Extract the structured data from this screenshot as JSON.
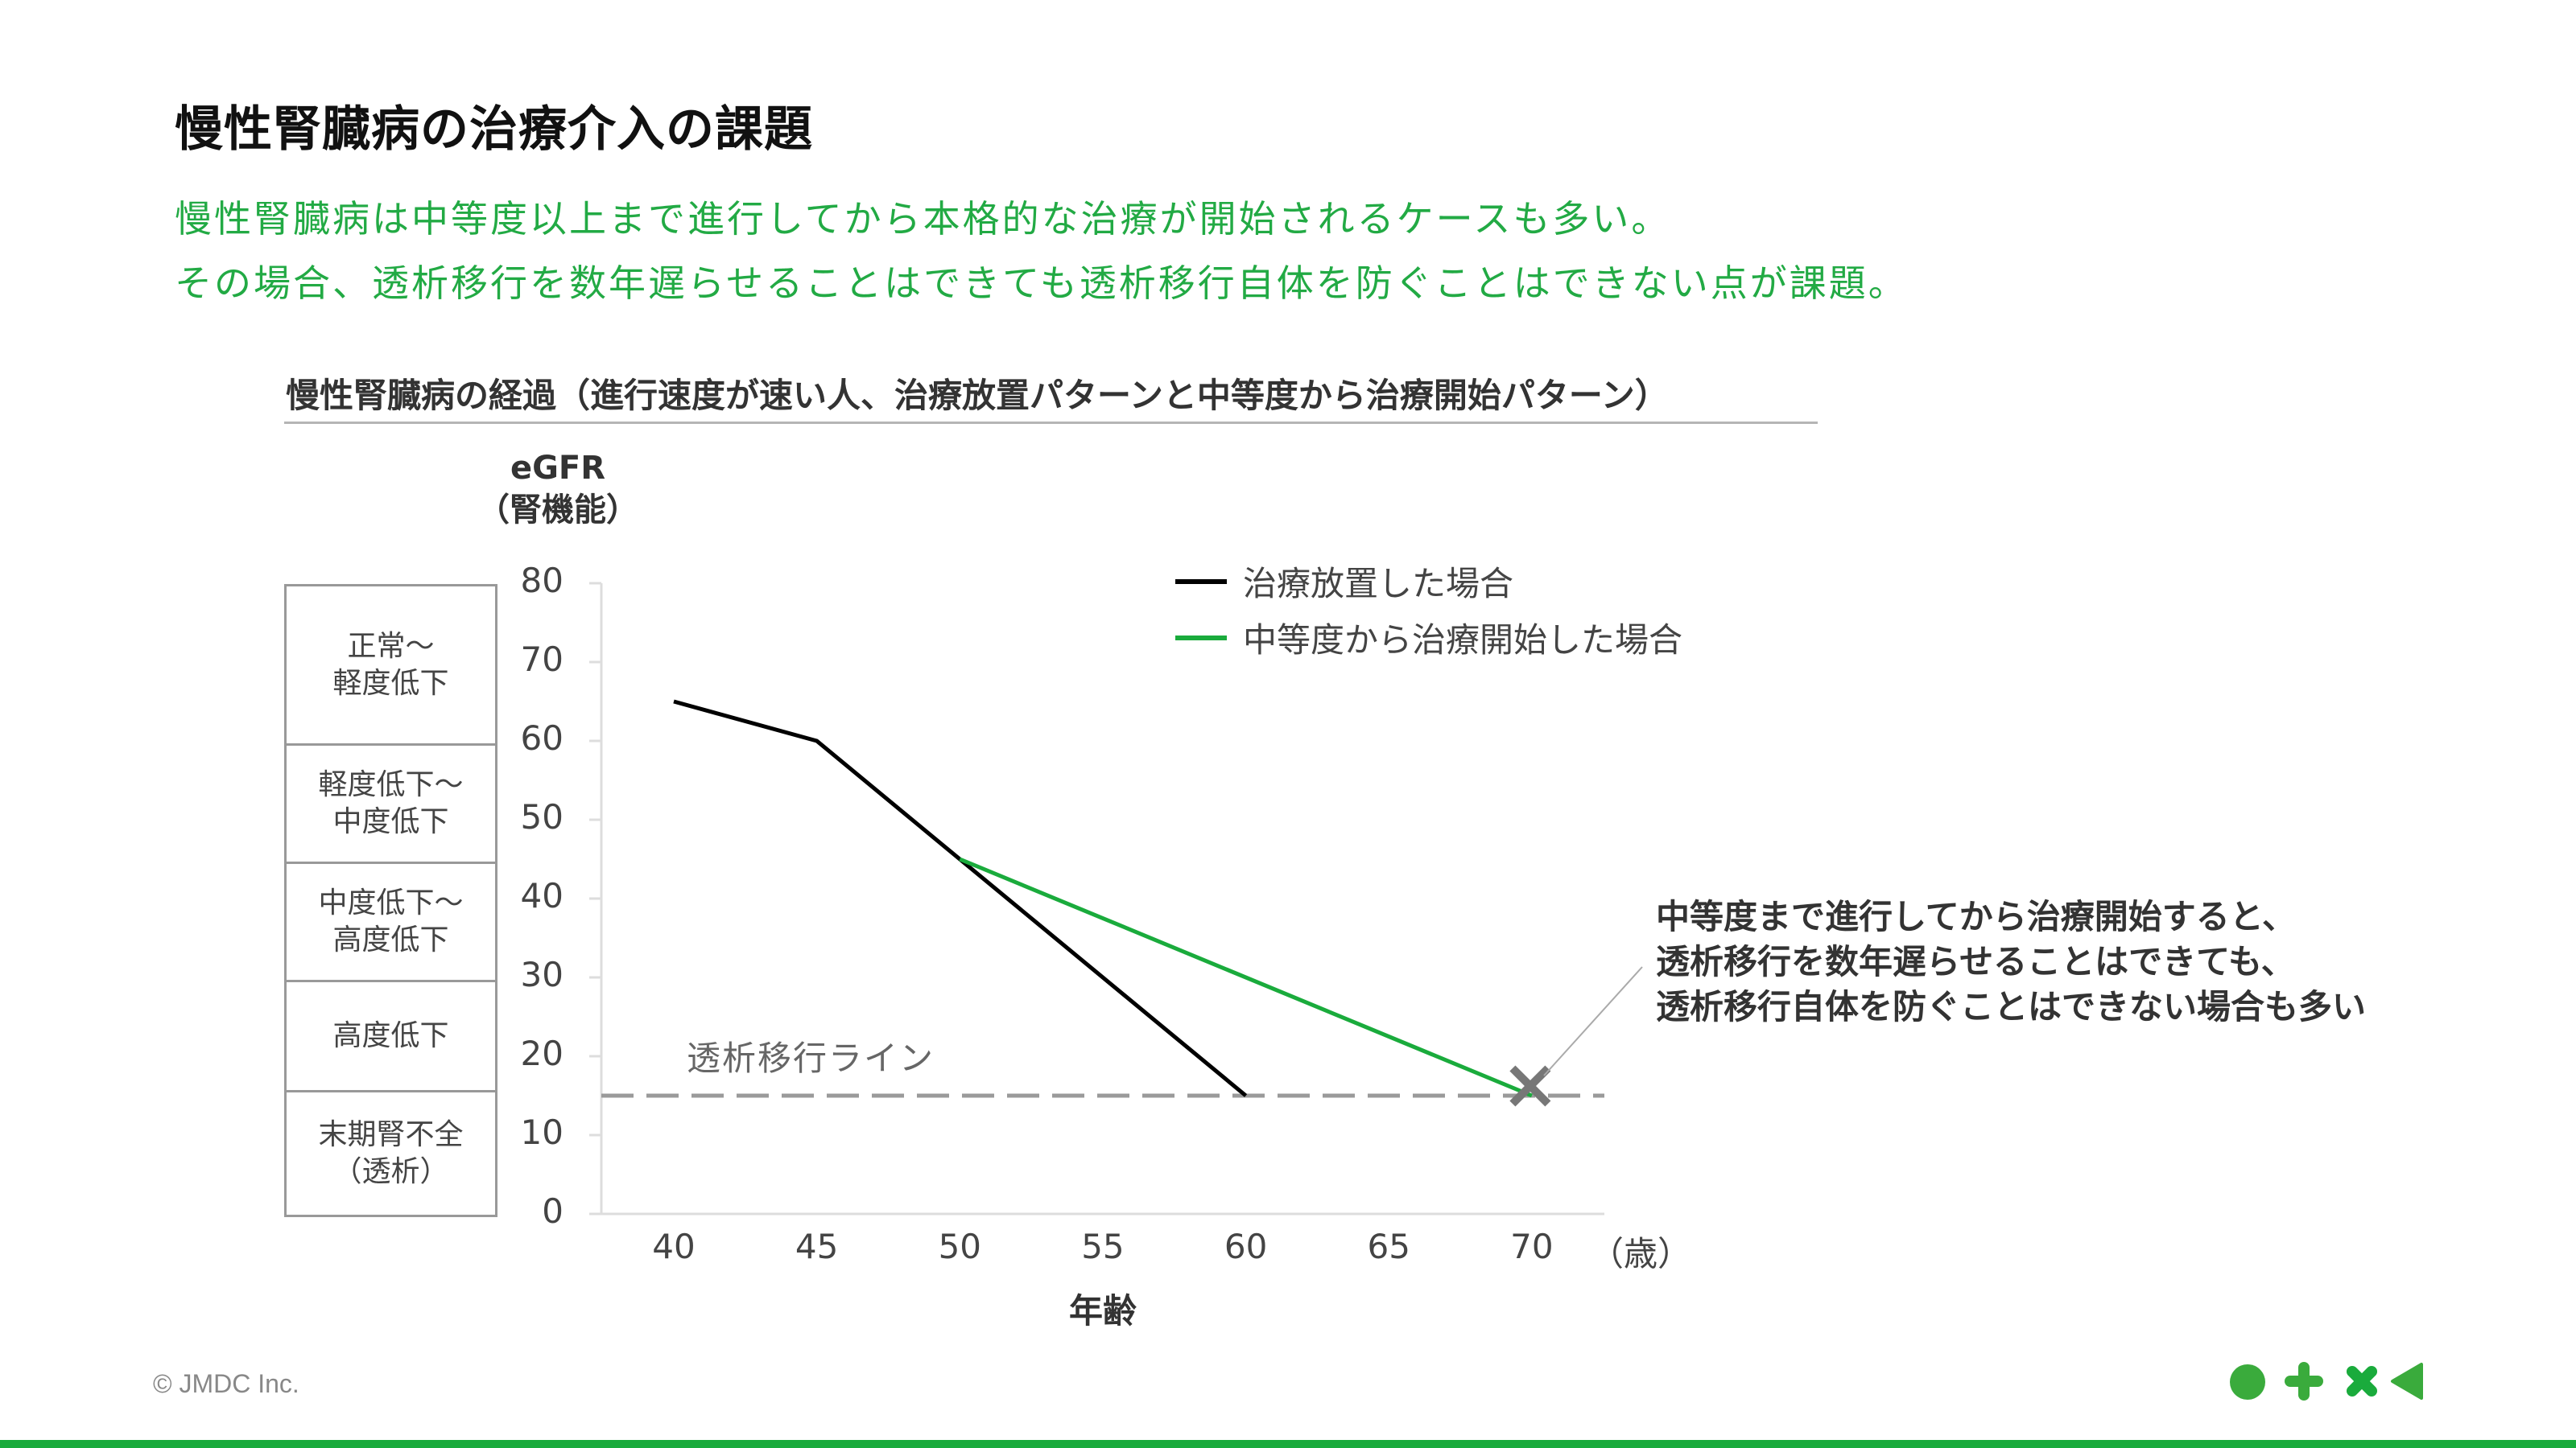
{
  "slide": {
    "title": "慢性腎臓病の治療介入の課題",
    "lead_lines": [
      "慢性腎臓病は中等度以上まで進行してから本格的な治療が開始されるケースも多い。",
      "その場合、透析移行を数年遅らせることはできても透析移行自体を防ぐことはできない点が課題。"
    ],
    "chart_heading": "慢性腎臓病の経過（進行速度が速い人、治療放置パターンと中等度から治療開始パターン）",
    "copyright": "© JMDC Inc.",
    "logo_icons": [
      "circle-icon",
      "plus-icon",
      "cross-icon",
      "triangle-left-icon"
    ],
    "colors": {
      "accent_green": "#1aab3c",
      "lead_text_green": "#22aa44",
      "untreated_line": "#000000",
      "treated_line": "#1aab3c",
      "dialysis_line": "#9a9a9a",
      "marker": "#777777"
    }
  },
  "chart_data": {
    "type": "line",
    "title": "慢性腎臓病の経過（進行速度が速い人、治療放置パターンと中等度から治療開始パターン）",
    "ylabel": "eGFR",
    "ylabel_sub": "（腎機能）",
    "xlabel": "年齢",
    "x_unit": "（歳）",
    "ylim": [
      0,
      80
    ],
    "xlim": [
      37.5,
      72.5
    ],
    "y_ticks": [
      "80",
      "70",
      "60",
      "50",
      "40",
      "30",
      "20",
      "10",
      "0"
    ],
    "x_ticks": [
      "40",
      "45",
      "50",
      "55",
      "60",
      "65",
      "70"
    ],
    "grid": false,
    "legend_position": "top-right",
    "series": [
      {
        "name": "治療放置した場合",
        "color": "#000000",
        "points": [
          [
            40,
            65
          ],
          [
            45,
            60
          ],
          [
            60,
            15
          ]
        ]
      },
      {
        "name": "中等度から治療開始した場合",
        "color": "#1aab3c",
        "points": [
          [
            50,
            45
          ],
          [
            70,
            15
          ]
        ]
      }
    ],
    "reference_lines": [
      {
        "label": "透析移行ライン",
        "y": 15,
        "style": "dashed",
        "color": "#9a9a9a"
      }
    ],
    "markers": [
      {
        "type": "x",
        "x": 70,
        "y": 15,
        "color": "#777777"
      }
    ],
    "annotations": [
      {
        "text": "中等度まで進行してから治療開始すると、\n透析移行を数年遅らせることはできても、\n透析移行自体を防ぐことはできない場合も多い",
        "points_to": [
          70,
          15
        ]
      }
    ],
    "stage_bands": [
      {
        "label": "正常～\n軽度低下",
        "range": [
          60,
          80
        ]
      },
      {
        "label": "軽度低下～\n中度低下",
        "range": [
          45,
          60
        ]
      },
      {
        "label": "中度低下～\n高度低下",
        "range": [
          30,
          45
        ]
      },
      {
        "label": "高度低下",
        "range": [
          15,
          30
        ]
      },
      {
        "label": "末期腎不全\n（透析）",
        "range": [
          0,
          15
        ]
      }
    ]
  }
}
